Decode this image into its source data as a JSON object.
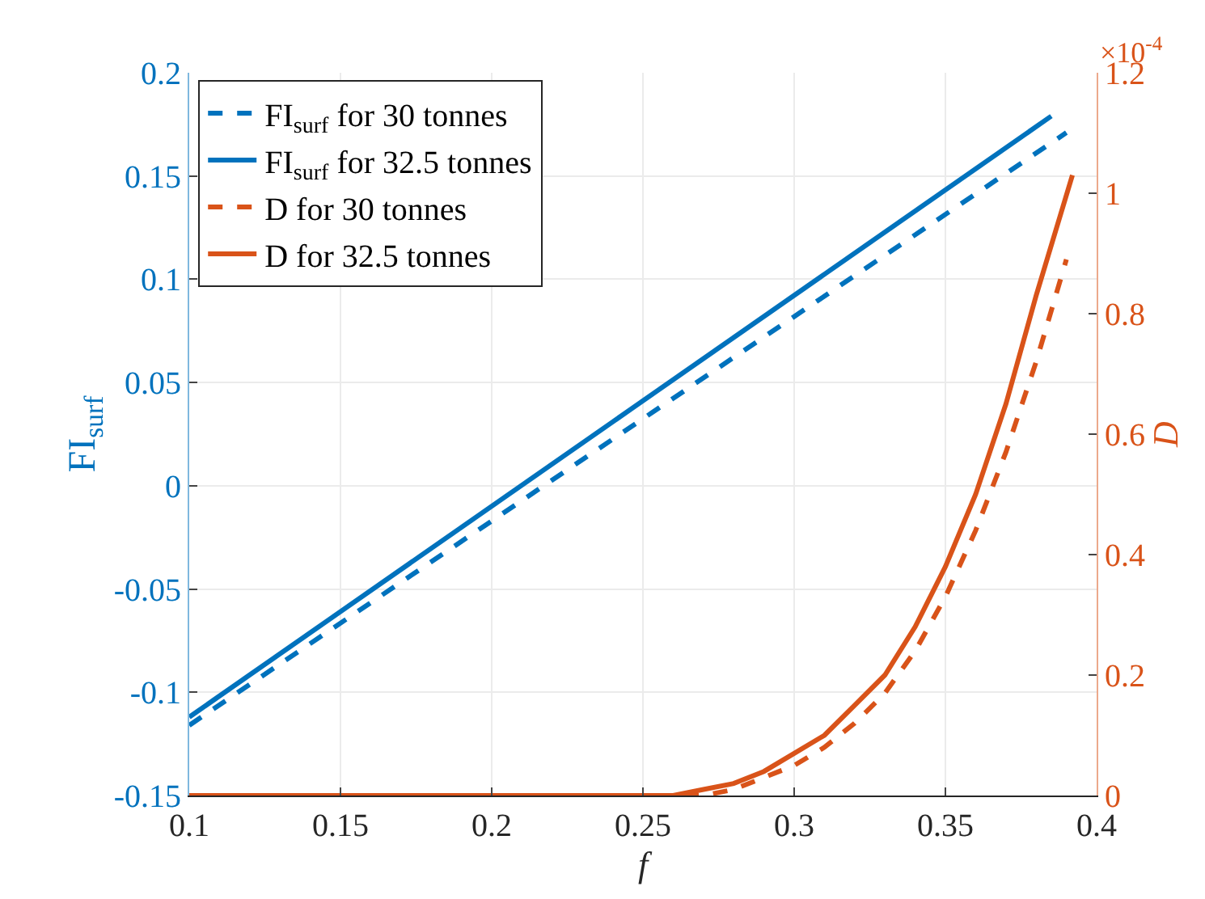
{
  "chart_data": {
    "type": "line",
    "xlabel": "f",
    "ylabel": "FI$_{surf}$",
    "y2label": "D",
    "xlim": [
      0.1,
      0.4
    ],
    "xticks": [
      0.1,
      0.15,
      0.2,
      0.25,
      0.3,
      0.35,
      0.4
    ],
    "ylim": [
      -0.15,
      0.2
    ],
    "yticks": [
      -0.15,
      -0.1,
      -0.05,
      0,
      0.05,
      0.1,
      0.15,
      0.2
    ],
    "y2lim": [
      0,
      1.2
    ],
    "y2ticks": [
      0,
      0.2,
      0.4,
      0.6,
      0.8,
      1,
      1.2
    ],
    "annotations": [
      "×10$^{-4}$"
    ],
    "grid": true,
    "legend": "top left",
    "series": [
      {
        "name": "FI$_{surf}$ for 30 tonnes",
        "color": "#0072bd",
        "line_style": "dashed",
        "x": [
          0.1,
          0.39
        ],
        "values": [
          -0.116,
          0.171
        ]
      },
      {
        "name": "FI$_{surf}$ for 32.5 tonnes",
        "color": "#0072bd",
        "line_style": "solid",
        "x": [
          0.1,
          0.385
        ],
        "values": [
          -0.112,
          0.179
        ]
      },
      {
        "name": "D for 30 tonnes",
        "color": "#d95319",
        "line_style": "dashed",
        "axis": "y2",
        "x": [
          0.1,
          0.2,
          0.26,
          0.27,
          0.28,
          0.29,
          0.3,
          0.31,
          0.32,
          0.33,
          0.34,
          0.35,
          0.36,
          0.37,
          0.38,
          0.39
        ],
        "values": [
          0,
          0,
          0,
          0,
          0.01,
          0.03,
          0.05,
          0.08,
          0.12,
          0.17,
          0.24,
          0.33,
          0.44,
          0.57,
          0.72,
          0.89
        ]
      },
      {
        "name": "D for 32.5 tonnes",
        "color": "#d95319",
        "line_style": "solid",
        "axis": "y2",
        "x": [
          0.1,
          0.2,
          0.25,
          0.26,
          0.27,
          0.28,
          0.29,
          0.3,
          0.31,
          0.32,
          0.33,
          0.34,
          0.35,
          0.36,
          0.37,
          0.38,
          0.392
        ],
        "values": [
          0,
          0,
          0,
          0,
          0.01,
          0.02,
          0.04,
          0.07,
          0.1,
          0.15,
          0.2,
          0.28,
          0.38,
          0.5,
          0.65,
          0.83,
          1.03
        ]
      }
    ]
  }
}
